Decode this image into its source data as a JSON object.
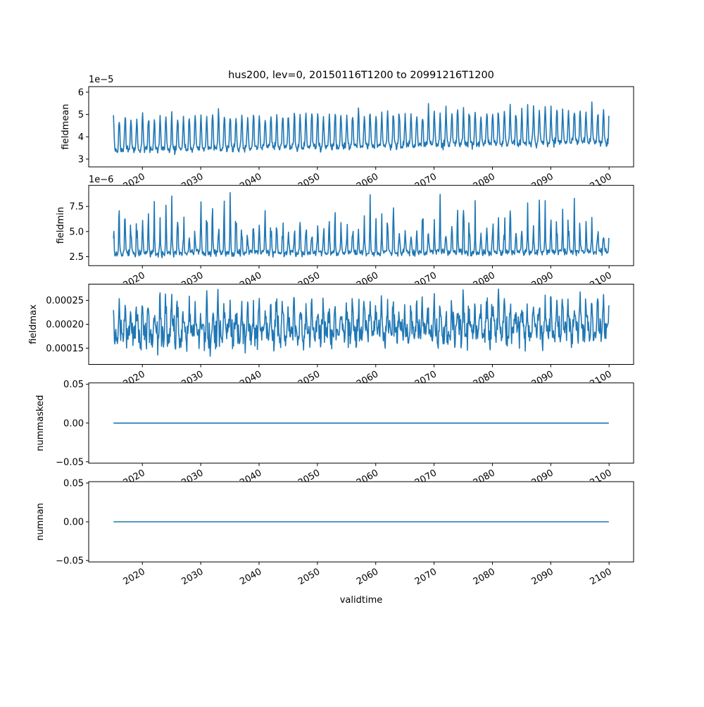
{
  "figure": {
    "title": "hus200, lev=0, 20150116T1200 to 20991216T1200",
    "xlabel": "validtime",
    "background": "#ffffff"
  },
  "chart_data": {
    "type": "line",
    "title": "hus200, lev=0, 20150116T1200 to 20991216T1200",
    "xlabel": "validtime",
    "legend": "none",
    "grid": false,
    "line_color": "#1f77b4",
    "line_width": 1.6,
    "n_points": 1020,
    "sampling": "monthly",
    "x_start": 2015.0417,
    "x_step": 0.0833333,
    "xlim": [
      2010.8,
      2104.2
    ],
    "x_ticks": [
      2020,
      2030,
      2040,
      2050,
      2060,
      2070,
      2080,
      2090,
      2100
    ],
    "x_tick_labels": [
      "2020",
      "2030",
      "2040",
      "2050",
      "2060",
      "2070",
      "2080",
      "2090",
      "2100"
    ],
    "x_tick_rotation_deg": 30,
    "panels": [
      {
        "ylabel": "fieldmean",
        "offset_text": "1e−5",
        "unit_scale": "1e-5",
        "yticks": [
          3,
          4,
          5,
          6
        ],
        "ytick_labels": [
          "3",
          "4",
          "5",
          "6"
        ],
        "ylim": [
          2.65,
          6.25
        ],
        "observed_min": 2.8,
        "observed_max": 6.15,
        "pattern": "annual seasonal cycle, sharp yearly peaks, slight upward trend",
        "synth": {
          "seed": 42,
          "base": 3.7,
          "trend": 0.0045,
          "harmonics": [
            {
              "k": 1,
              "amp": 0.5
            },
            {
              "k": 2,
              "amp": 0.27
            },
            {
              "k": 3,
              "amp": 0.13
            }
          ],
          "peak": {
            "power": 3,
            "base": 0.12,
            "rand": 0.52
          },
          "noise": 0.2
        }
      },
      {
        "ylabel": "fieldmin",
        "offset_text": "1e−6",
        "unit_scale": "1e-6",
        "yticks": [
          2.5,
          5.0,
          7.5
        ],
        "ytick_labels": [
          "2.5",
          "5.0",
          "7.5"
        ],
        "ylim": [
          1.6,
          9.6
        ],
        "observed_min": 2.0,
        "observed_max": 9.4,
        "pattern": "baseline 2.5-3.5 with tall irregular annual spikes up to 9.4",
        "synth": {
          "seed": 7,
          "base": 3.0,
          "trend": 0.002,
          "harmonics": [
            {
              "k": 1,
              "amp": 0.3
            },
            {
              "k": 2,
              "amp": 0.2
            }
          ],
          "peak": {
            "power": 4,
            "base": 0.8,
            "rand": 4.5
          },
          "noise": 0.4
        }
      },
      {
        "ylabel": "fieldmax",
        "offset_text": "",
        "unit_scale": "1e-4",
        "yticks": [
          1.5,
          2.0,
          2.5
        ],
        "ytick_labels": [
          "0.00015",
          "0.00020",
          "0.00025"
        ],
        "ylim": [
          1.16,
          2.84
        ],
        "observed_min": 1.25,
        "observed_max": 2.8,
        "pattern": "dense noisy oscillation around 0.00019, no strong trend",
        "synth": {
          "seed": 99,
          "base": 1.84,
          "trend": 0.0012,
          "harmonics": [
            {
              "k": 1,
              "amp": 0.14
            },
            {
              "k": 2,
              "amp": 0.09,
              "phase": 1.3
            }
          ],
          "peak": {
            "power": 2,
            "base": 0.12,
            "rand": 0.5
          },
          "noise": 0.4
        }
      },
      {
        "ylabel": "nummasked",
        "offset_text": "",
        "unit_scale": "1",
        "yticks": [
          -0.05,
          0.0,
          0.05
        ],
        "ytick_labels": [
          "−0.05",
          "0.00",
          "0.05"
        ],
        "ylim": [
          -0.0518,
          0.0518
        ],
        "observed_min": 0,
        "observed_max": 0,
        "pattern": "constant zero line",
        "synth": {
          "constant": 0
        }
      },
      {
        "ylabel": "numnan",
        "offset_text": "",
        "unit_scale": "1",
        "yticks": [
          -0.05,
          0.0,
          0.05
        ],
        "ytick_labels": [
          "−0.05",
          "0.00",
          "0.05"
        ],
        "ylim": [
          -0.0518,
          0.0518
        ],
        "observed_min": 0,
        "observed_max": 0,
        "pattern": "constant zero line",
        "synth": {
          "constant": 0
        }
      }
    ]
  }
}
